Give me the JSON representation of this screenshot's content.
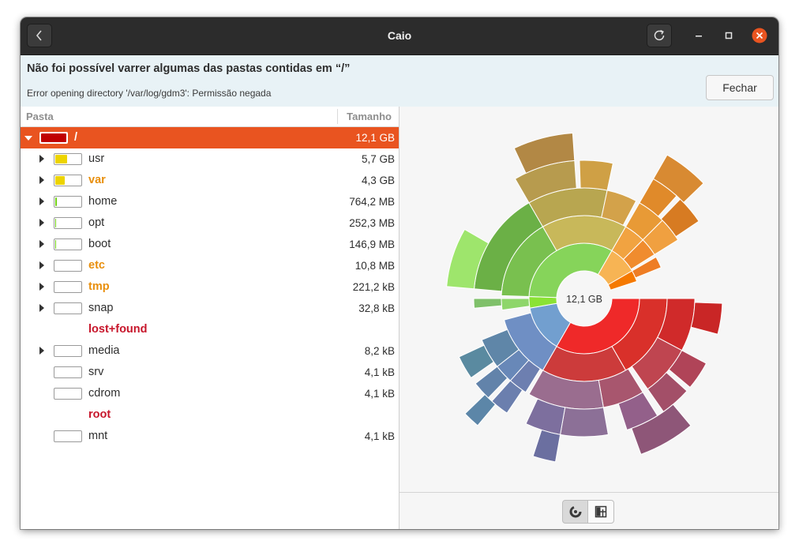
{
  "window": {
    "title": "Caio",
    "back_icon": "back-chevron-icon",
    "reload_icon": "reload-icon"
  },
  "infobar": {
    "title": "Não foi possível varrer algumas das pastas contidas em “/”",
    "message": "Error opening directory '/var/log/gdm3': Permissão negada",
    "close_label": "Fechar"
  },
  "tree": {
    "columns": {
      "folder": "Pasta",
      "size": "Tamanho"
    },
    "root": {
      "name": "/",
      "size": "12,1 GB",
      "fill": 1.0,
      "color": "#c00000"
    },
    "items": [
      {
        "name": "usr",
        "size": "5,7 GB",
        "fill": 0.47,
        "color": "#edd400",
        "expandable": true,
        "status": "normal"
      },
      {
        "name": "var",
        "size": "4,3 GB",
        "fill": 0.36,
        "color": "#edd400",
        "expandable": true,
        "status": "warn"
      },
      {
        "name": "home",
        "size": "764,2 MB",
        "fill": 0.06,
        "color": "#73d216",
        "expandable": true,
        "status": "normal"
      },
      {
        "name": "opt",
        "size": "252,3 MB",
        "fill": 0.02,
        "color": "#73d216",
        "expandable": true,
        "status": "normal"
      },
      {
        "name": "boot",
        "size": "146,9 MB",
        "fill": 0.01,
        "color": "#73d216",
        "expandable": true,
        "status": "normal"
      },
      {
        "name": "etc",
        "size": "10,8 MB",
        "fill": 0.0,
        "color": "#73d216",
        "expandable": true,
        "status": "warn"
      },
      {
        "name": "tmp",
        "size": "221,2 kB",
        "fill": 0.0,
        "color": "#73d216",
        "expandable": true,
        "status": "warn"
      },
      {
        "name": "snap",
        "size": "32,8 kB",
        "fill": 0.0,
        "color": "#73d216",
        "expandable": true,
        "status": "normal"
      },
      {
        "name": "lost+found",
        "size": "",
        "fill": null,
        "color": "",
        "expandable": false,
        "status": "error"
      },
      {
        "name": "media",
        "size": "8,2 kB",
        "fill": 0.0,
        "color": "#73d216",
        "expandable": true,
        "status": "normal"
      },
      {
        "name": "srv",
        "size": "4,1 kB",
        "fill": 0.0,
        "color": "#73d216",
        "expandable": false,
        "status": "normal"
      },
      {
        "name": "cdrom",
        "size": "4,1 kB",
        "fill": 0.0,
        "color": "#73d216",
        "expandable": false,
        "status": "normal"
      },
      {
        "name": "root",
        "size": "",
        "fill": null,
        "color": "",
        "expandable": false,
        "status": "error"
      },
      {
        "name": "mnt",
        "size": "4,1 kB",
        "fill": 0.0,
        "color": "#73d216",
        "expandable": false,
        "status": "normal"
      }
    ]
  },
  "chart": {
    "center_label": "12,1 GB",
    "view_ring_icon": "rings-chart-icon",
    "view_treemap_icon": "treemap-chart-icon"
  },
  "colors": {
    "accent": "#e95420",
    "warning": "#e88f0d",
    "error": "#c7162b"
  }
}
